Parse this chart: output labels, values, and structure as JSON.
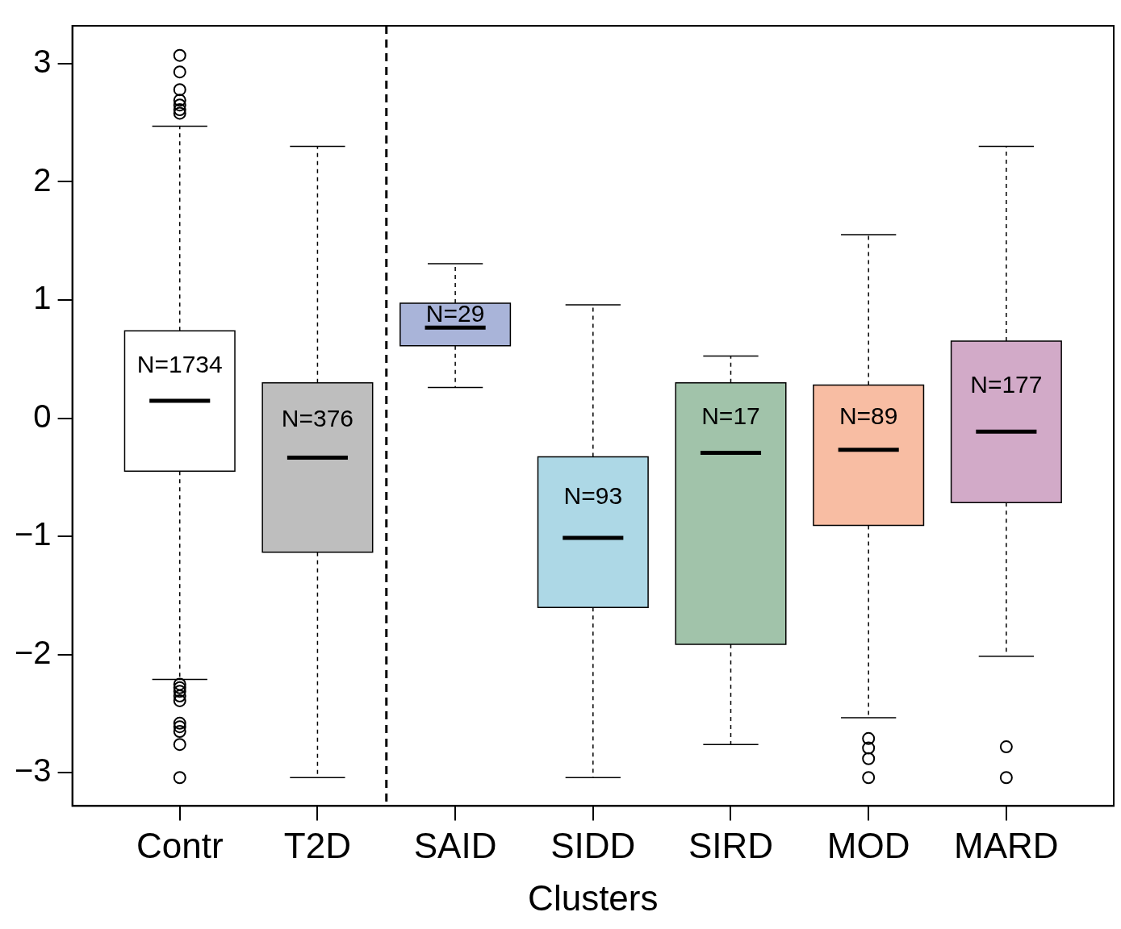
{
  "chart_data": {
    "type": "box",
    "xlabel": "Clusters",
    "categories": [
      "Contr",
      "T2D",
      "SAID",
      "SIDD",
      "SIRD",
      "MOD",
      "MARD"
    ],
    "colors": [
      "#ffffff",
      "#bebebe",
      "#a9b4d9",
      "#add8e6",
      "#a1c3aa",
      "#f8bda3",
      "#d2aac8"
    ],
    "boxes": [
      {
        "low": -2.21,
        "q1": -0.447,
        "median": 0.147,
        "q3": 0.74,
        "high": 2.47,
        "outliers": [
          3.07,
          2.93,
          2.78,
          2.69,
          2.65,
          2.61,
          2.58,
          -2.25,
          -2.28,
          -2.31,
          -2.35,
          -2.39,
          -2.58,
          -2.61,
          -2.65,
          -2.76,
          -3.04
        ]
      },
      {
        "low": -3.04,
        "q1": -1.133,
        "median": -0.333,
        "q3": 0.3,
        "high": 2.3
      },
      {
        "low": 0.26,
        "q1": 0.613,
        "median": 0.767,
        "q3": 0.973,
        "high": 1.307
      },
      {
        "low": -3.04,
        "q1": -1.6,
        "median": -1.013,
        "q3": -0.327,
        "high": 0.96
      },
      {
        "low": -2.76,
        "q1": -1.913,
        "median": -0.293,
        "q3": 0.3,
        "high": 0.527
      },
      {
        "low": -2.533,
        "q1": -0.907,
        "median": -0.267,
        "q3": 0.28,
        "high": 1.553,
        "outliers": [
          -2.71,
          -2.79,
          -2.88,
          -3.04
        ]
      },
      {
        "low": -2.013,
        "q1": -0.713,
        "median": -0.113,
        "q3": 0.653,
        "high": 2.3,
        "outliers": [
          -2.78,
          -3.04
        ]
      }
    ],
    "ylim": [
      -3.28,
      3.32
    ],
    "yticks": [
      -3,
      -2,
      -1,
      0,
      1,
      2,
      3
    ],
    "grid": false,
    "legend": false,
    "marker": "circle",
    "annotations": [
      "N=1734",
      "N=376",
      "N=29",
      "N=93",
      "N=17",
      "N=89",
      "N=177"
    ]
  }
}
